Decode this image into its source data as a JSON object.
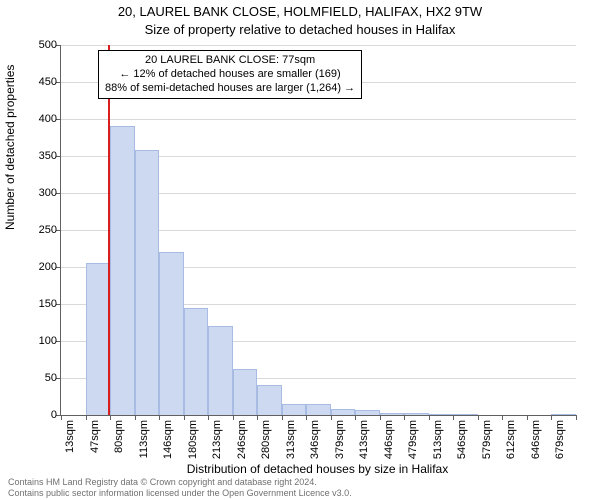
{
  "title_line1": "20, LAUREL BANK CLOSE, HOLMFIELD, HALIFAX, HX2 9TW",
  "title_line2": "Size of property relative to detached houses in Halifax",
  "y_axis_label": "Number of detached properties",
  "x_axis_label": "Distribution of detached houses by size in Halifax",
  "chart": {
    "type": "histogram",
    "ylim": [
      0,
      500
    ],
    "ytick_step": 50,
    "grid_color": "#d9d9d9",
    "axis_color": "#606060",
    "background_color": "#ffffff",
    "bar_fill": "#cdd9f1",
    "bar_border": "#a8bce3",
    "marker_color": "#d81e1e",
    "marker_x_value": 77,
    "x_start": 13,
    "x_step": 33.3,
    "x_labels": [
      "13sqm",
      "47sqm",
      "80sqm",
      "113sqm",
      "146sqm",
      "180sqm",
      "213sqm",
      "246sqm",
      "280sqm",
      "313sqm",
      "346sqm",
      "379sqm",
      "413sqm",
      "446sqm",
      "479sqm",
      "513sqm",
      "546sqm",
      "579sqm",
      "612sqm",
      "646sqm",
      "679sqm"
    ],
    "bar_values": [
      0,
      205,
      390,
      358,
      220,
      145,
      120,
      62,
      40,
      15,
      15,
      8,
      7,
      3,
      3,
      2,
      1,
      0,
      0,
      0,
      1
    ]
  },
  "annotation": {
    "line1": "20 LAUREL BANK CLOSE: 77sqm",
    "line2": "← 12% of detached houses are smaller (169)",
    "line3": "88% of semi-detached houses are larger (1,264) →"
  },
  "copyright": {
    "line1": "Contains HM Land Registry data © Crown copyright and database right 2024.",
    "line2": "Contains public sector information licensed under the Open Government Licence v3.0."
  }
}
